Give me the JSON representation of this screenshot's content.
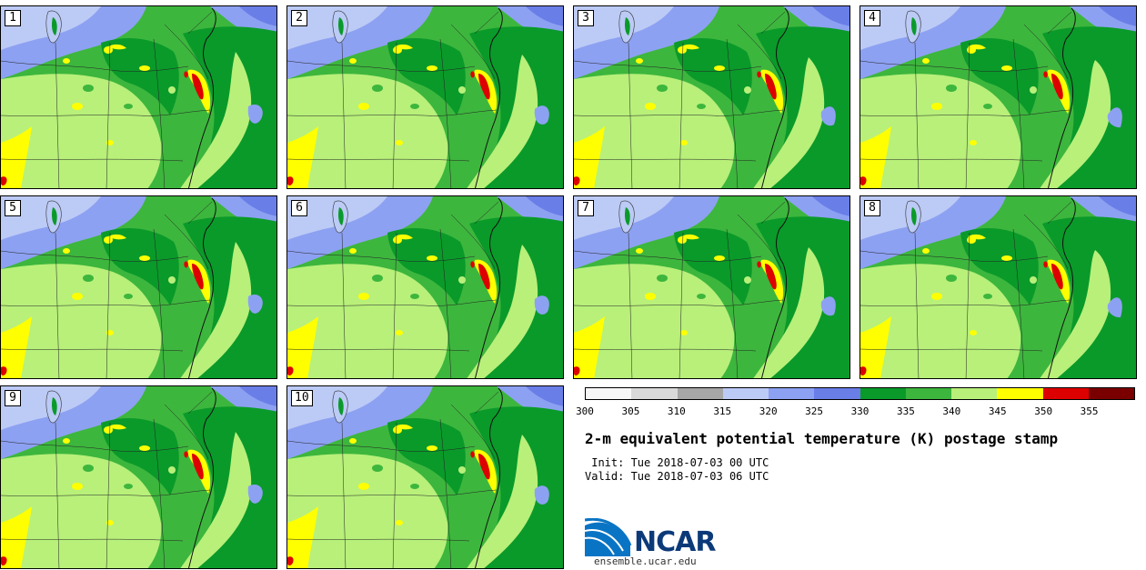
{
  "title": "2-m equivalent potential temperature (K) postage stamp",
  "init_line": " Init: Tue 2018-07-03 00 UTC",
  "valid_line": "Valid: Tue 2018-07-03 06 UTC",
  "members": [
    "1",
    "2",
    "3",
    "4",
    "5",
    "6",
    "7",
    "8",
    "9",
    "10"
  ],
  "colorbar": {
    "ticks": [
      "300",
      "305",
      "310",
      "315",
      "320",
      "325",
      "330",
      "335",
      "340",
      "345",
      "350",
      "355"
    ],
    "colors": [
      "#f7f7f7",
      "#d9d9d9",
      "#a6a6a6",
      "#bccaf6",
      "#8da1f2",
      "#6a7ee8",
      "#0a9a2a",
      "#3db63d",
      "#b8f07a",
      "#ffff00",
      "#dd0000",
      "#7a0000"
    ]
  },
  "logo": {
    "name": "NCAR",
    "url": "ensemble.ucar.edu"
  },
  "colors": {
    "dark_green": "#0a9a2a",
    "medium_green": "#3db63d",
    "light_green": "#b8f07a",
    "yellow": "#ffff00",
    "red": "#dd0000",
    "light_blue": "#bccaf6",
    "mid_blue": "#8da1f2",
    "dark_blue": "#6a7ee8"
  }
}
